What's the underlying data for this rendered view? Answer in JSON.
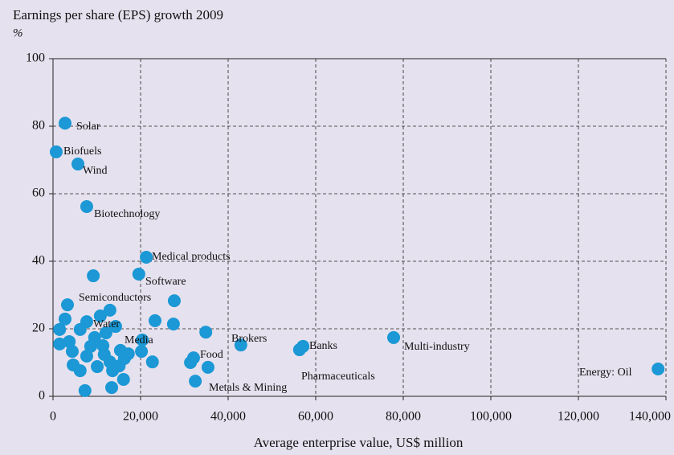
{
  "chart_data": {
    "type": "scatter",
    "title": "Earnings per share (EPS) growth 2009",
    "y_label": "%",
    "x_label": "Average enterprise value, US$ million",
    "color": "#1b98d5",
    "grid": true,
    "xlim": [
      0,
      140000
    ],
    "ylim": [
      0,
      100
    ],
    "xticks": [
      0,
      {
        "value": 20000,
        "label": "20,000"
      },
      {
        "value": 40000,
        "label": "40,000"
      },
      {
        "value": 60000,
        "label": "60,000"
      },
      {
        "value": 80000,
        "label": "80,000"
      },
      {
        "value": 100000,
        "label": "100,000"
      },
      {
        "value": 120000,
        "label": "120,000"
      },
      {
        "value": 140000,
        "label": "140,000"
      }
    ],
    "yticks": [
      0,
      20,
      40,
      60,
      80,
      100
    ],
    "x": [
      2750,
      730,
      5690,
      7700,
      21300,
      19600,
      9200,
      3300,
      27700,
      13000,
      10800,
      23300,
      27500,
      2750,
      7700,
      1500,
      14300,
      6200,
      34900,
      12100,
      9500,
      20400,
      1500,
      3700,
      42900,
      57100,
      56300,
      77800,
      138200,
      32100,
      31400,
      35400,
      32500,
      22700,
      20200,
      16300,
      17200,
      15100,
      11700,
      8600,
      4400,
      4600,
      6200,
      7300,
      13400,
      16100,
      13600,
      10100,
      11400,
      7700,
      13000,
      15400
    ],
    "values": [
      80.9,
      72.4,
      68.8,
      56.2,
      41.2,
      36.2,
      35.7,
      27.1,
      28.3,
      25.5,
      23.8,
      22.4,
      21.4,
      22.9,
      22.1,
      19.8,
      20.7,
      19.8,
      19.0,
      18.8,
      17.4,
      16.7,
      15.5,
      16.2,
      15.2,
      14.8,
      13.8,
      17.4,
      8.1,
      11.4,
      10.0,
      8.6,
      4.5,
      10.2,
      13.3,
      11.2,
      12.6,
      9.0,
      12.4,
      14.8,
      13.3,
      9.3,
      7.6,
      1.7,
      2.6,
      5.0,
      7.6,
      8.8,
      15.0,
      11.9,
      10.2,
      13.6
    ],
    "annotations": [
      "Solar",
      "Biofuels",
      "Wind",
      "Biotechnology",
      "Medical products",
      "Software",
      "Semiconductors",
      "Water",
      "Media",
      "Food",
      "Brokers",
      "Banks",
      "Multi-industry",
      "Pharmaceuticals",
      "Metals & Mining",
      "Energy: Oil"
    ]
  }
}
